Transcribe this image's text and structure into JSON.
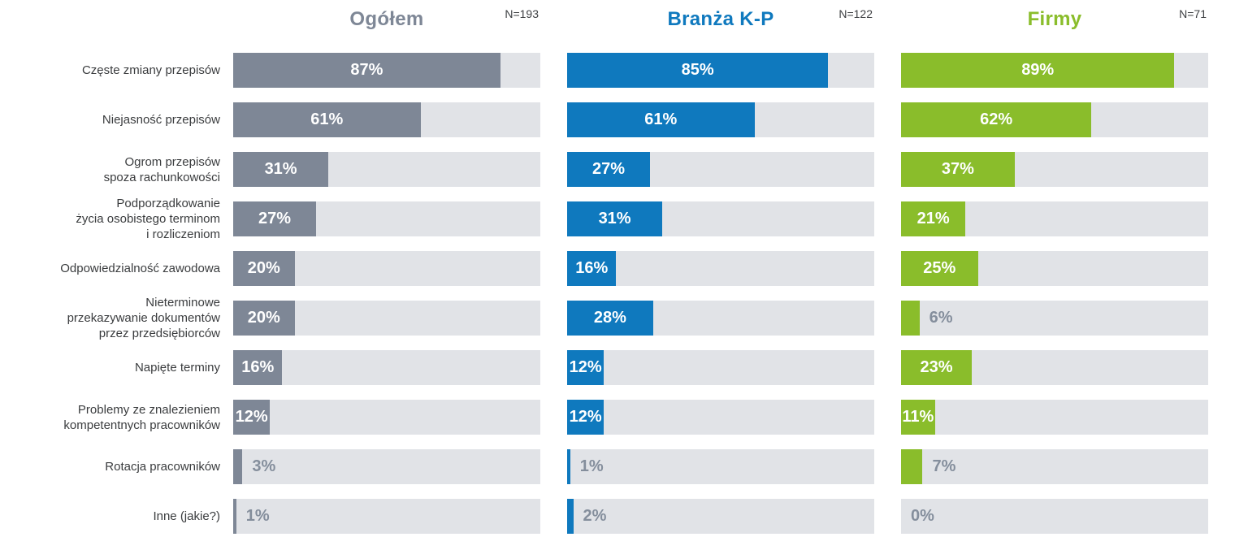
{
  "chart_data": {
    "type": "bar",
    "orientation": "horizontal",
    "unit": "%",
    "xlim": [
      0,
      100
    ],
    "grid": false,
    "legend": "none",
    "track_color": "#e1e3e7",
    "inside_value_color": "#ffffff",
    "outside_value_color": "#848e9c",
    "categories": [
      "Częste zmiany przepisów",
      "Niejasność przepisów",
      "Ogrom przepisów spoza rachunkowości",
      "Podporządkowanie życia osobistego terminom i rozliczeniom",
      "Odpowiedzialność zawodowa",
      "Nieterminowe przekazywanie dokumentów przez przedsiębiorców",
      "Napięte terminy",
      "Problemy ze znalezieniem kompetentnych pracowników",
      "Rotacja pracowników",
      "Inne (jakie?)"
    ],
    "category_label_lines": [
      [
        "Częste zmiany przepisów"
      ],
      [
        "Niejasność przepisów"
      ],
      [
        "Ogrom przepisów",
        "spoza rachunkowości"
      ],
      [
        "Podporządkowanie",
        "życia osobistego terminom",
        "i rozliczeniom"
      ],
      [
        "Odpowiedzialność zawodowa"
      ],
      [
        "Nieterminowe",
        "przekazywanie dokumentów",
        "przez przedsiębiorców"
      ],
      [
        "Napięte terminy"
      ],
      [
        "Problemy ze znalezieniem",
        "kompetentnych pracowników"
      ],
      [
        "Rotacja pracowników"
      ],
      [
        "Inne (jakie?)"
      ]
    ],
    "series": [
      {
        "name": "Ogółem",
        "n_label": "N=193",
        "color": "#7e8796",
        "values": [
          87,
          61,
          31,
          27,
          20,
          20,
          16,
          12,
          3,
          1
        ],
        "value_labels": [
          "87%",
          "61%",
          "31%",
          "27%",
          "20%",
          "20%",
          "16%",
          "12%",
          "3%",
          "1%"
        ]
      },
      {
        "name": "Branża K-P",
        "n_label": "N=122",
        "color": "#0f79be",
        "values": [
          85,
          61,
          27,
          31,
          16,
          28,
          12,
          12,
          1,
          2
        ],
        "value_labels": [
          "85%",
          "61%",
          "27%",
          "31%",
          "16%",
          "28%",
          "12%",
          "12%",
          "1%",
          "2%"
        ]
      },
      {
        "name": "Firmy",
        "n_label": "N=71",
        "color": "#8abd2b",
        "values": [
          89,
          62,
          37,
          21,
          25,
          6,
          23,
          11,
          7,
          0
        ],
        "value_labels": [
          "89%",
          "62%",
          "37%",
          "21%",
          "25%",
          "6%",
          "23%",
          "11%",
          "7%",
          "0%"
        ]
      }
    ]
  }
}
